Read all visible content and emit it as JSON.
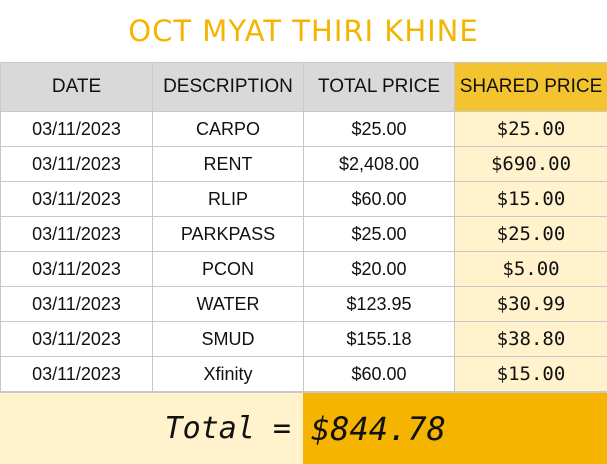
{
  "title": "OCT MYAT THIRI KHINE",
  "colors": {
    "accent": "#f4b400",
    "header_bg": "#d9d9d9",
    "shared_header_bg": "#f4c430",
    "shared_cell_bg": "#fff2cc"
  },
  "headers": {
    "date": "DATE",
    "description": "DESCRIPTION",
    "total": "TOTAL PRICE",
    "shared": "SHARED PRICE"
  },
  "rows": [
    {
      "date": "03/11/2023",
      "description": "CARPO",
      "total": "$25.00",
      "shared": "$25.00"
    },
    {
      "date": "03/11/2023",
      "description": "RENT",
      "total": "$2,408.00",
      "shared": "$690.00"
    },
    {
      "date": "03/11/2023",
      "description": "RLIP",
      "total": "$60.00",
      "shared": "$15.00"
    },
    {
      "date": "03/11/2023",
      "description": "PARKPASS",
      "total": "$25.00",
      "shared": "$25.00"
    },
    {
      "date": "03/11/2023",
      "description": "PCON",
      "total": "$20.00",
      "shared": "$5.00"
    },
    {
      "date": "03/11/2023",
      "description": "WATER",
      "total": "$123.95",
      "shared": "$30.99"
    },
    {
      "date": "03/11/2023",
      "description": "SMUD",
      "total": "$155.18",
      "shared": "$38.80"
    },
    {
      "date": "03/11/2023",
      "description": "Xfinity",
      "total": "$60.00",
      "shared": "$15.00"
    }
  ],
  "footer": {
    "label": "Total =",
    "value": "$844.78"
  }
}
